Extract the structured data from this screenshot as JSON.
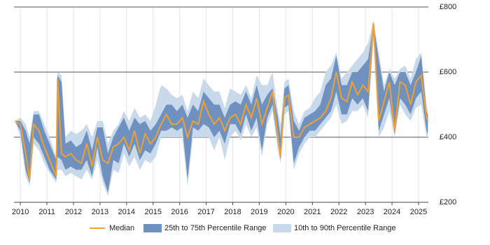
{
  "chart_data": {
    "type": "band-line",
    "x": [
      2009.8,
      2010.0,
      2010.2,
      2010.35,
      2010.5,
      2010.7,
      2010.9,
      2011.1,
      2011.35,
      2011.4,
      2011.55,
      2011.7,
      2011.9,
      2012.1,
      2012.3,
      2012.5,
      2012.7,
      2012.9,
      2013.1,
      2013.3,
      2013.5,
      2013.7,
      2013.9,
      2014.1,
      2014.3,
      2014.5,
      2014.7,
      2014.9,
      2015.1,
      2015.3,
      2015.5,
      2015.7,
      2015.9,
      2016.1,
      2016.3,
      2016.5,
      2016.7,
      2016.9,
      2017.1,
      2017.3,
      2017.5,
      2017.7,
      2017.9,
      2018.1,
      2018.3,
      2018.5,
      2018.7,
      2018.9,
      2019.1,
      2019.3,
      2019.5,
      2019.7,
      2019.8,
      2019.95,
      2020.1,
      2020.3,
      2020.5,
      2020.7,
      2020.9,
      2021.1,
      2021.3,
      2021.5,
      2021.7,
      2021.9,
      2022.1,
      2022.3,
      2022.5,
      2022.7,
      2022.9,
      2023.1,
      2023.3,
      2023.5,
      2023.7,
      2023.9,
      2024.1,
      2024.3,
      2024.5,
      2024.7,
      2024.9,
      2025.1,
      2025.3,
      2025.35
    ],
    "series": [
      {
        "name": "Median",
        "color": "#f0a030",
        "values": [
          450,
          440,
          350,
          270,
          440,
          420,
          370,
          330,
          280,
          580,
          350,
          340,
          350,
          330,
          320,
          380,
          310,
          400,
          330,
          320,
          370,
          380,
          400,
          360,
          420,
          350,
          410,
          380,
          400,
          440,
          470,
          440,
          440,
          460,
          400,
          450,
          440,
          510,
          470,
          440,
          460,
          420,
          460,
          470,
          440,
          500,
          460,
          520,
          440,
          490,
          540,
          400,
          340,
          520,
          530,
          400,
          400,
          430,
          440,
          450,
          460,
          480,
          520,
          600,
          520,
          510,
          570,
          530,
          560,
          540,
          750,
          450,
          510,
          570,
          420,
          570,
          560,
          500,
          570,
          590,
          460,
          450
        ]
      }
    ],
    "bands": [
      {
        "name": "25th to 75th Percentile Range",
        "color": "#6f91c0",
        "lower": [
          450,
          420,
          300,
          260,
          400,
          380,
          340,
          300,
          270,
          340,
          330,
          300,
          310,
          300,
          300,
          330,
          280,
          370,
          280,
          230,
          330,
          320,
          380,
          340,
          380,
          330,
          360,
          350,
          380,
          420,
          420,
          430,
          420,
          430,
          270,
          430,
          420,
          440,
          430,
          400,
          420,
          380,
          440,
          440,
          410,
          470,
          420,
          460,
          360,
          460,
          500,
          380,
          330,
          490,
          500,
          320,
          370,
          400,
          420,
          420,
          440,
          460,
          480,
          540,
          470,
          470,
          520,
          500,
          520,
          480,
          720,
          420,
          470,
          520,
          410,
          520,
          500,
          470,
          520,
          540,
          420,
          410
        ],
        "upper": [
          450,
          450,
          420,
          380,
          470,
          470,
          420,
          380,
          330,
          590,
          570,
          380,
          390,
          370,
          380,
          420,
          360,
          430,
          430,
          350,
          400,
          430,
          460,
          420,
          460,
          440,
          450,
          420,
          440,
          470,
          500,
          500,
          480,
          500,
          460,
          500,
          480,
          540,
          520,
          500,
          500,
          460,
          500,
          510,
          500,
          540,
          500,
          560,
          500,
          530,
          550,
          460,
          400,
          550,
          560,
          450,
          420,
          460,
          470,
          480,
          500,
          560,
          580,
          650,
          560,
          560,
          600,
          600,
          620,
          640,
          750,
          640,
          540,
          600,
          560,
          600,
          600,
          560,
          600,
          650,
          480,
          470
        ]
      },
      {
        "name": "10th to 90th Percentile Range",
        "color": "#c8d9ec",
        "lower": [
          450,
          400,
          280,
          250,
          380,
          360,
          320,
          290,
          260,
          300,
          300,
          280,
          290,
          280,
          270,
          300,
          270,
          330,
          260,
          220,
          300,
          290,
          350,
          310,
          340,
          300,
          330,
          320,
          340,
          400,
          400,
          400,
          400,
          400,
          250,
          400,
          400,
          400,
          400,
          360,
          400,
          330,
          400,
          420,
          390,
          440,
          400,
          430,
          340,
          440,
          480,
          360,
          320,
          470,
          480,
          300,
          350,
          380,
          400,
          400,
          420,
          440,
          460,
          500,
          440,
          450,
          480,
          480,
          500,
          460,
          700,
          400,
          430,
          480,
          400,
          500,
          470,
          450,
          490,
          500,
          400,
          400
        ],
        "upper": [
          450,
          460,
          440,
          400,
          480,
          480,
          440,
          400,
          340,
          600,
          590,
          400,
          420,
          410,
          420,
          440,
          400,
          450,
          450,
          380,
          420,
          440,
          480,
          450,
          490,
          460,
          470,
          450,
          500,
          560,
          550,
          530,
          520,
          530,
          480,
          540,
          520,
          580,
          560,
          540,
          540,
          490,
          550,
          540,
          530,
          560,
          520,
          590,
          560,
          560,
          600,
          480,
          440,
          570,
          580,
          480,
          440,
          480,
          490,
          520,
          540,
          600,
          620,
          660,
          580,
          600,
          620,
          640,
          660,
          690,
          760,
          660,
          560,
          610,
          580,
          610,
          620,
          580,
          640,
          660,
          500,
          480
        ]
      }
    ],
    "xlim": [
      2009.76,
      2025.37
    ],
    "xticks": [
      2010,
      2011,
      2012,
      2013,
      2014,
      2015,
      2016,
      2017,
      2018,
      2019,
      2020,
      2021,
      2022,
      2023,
      2024,
      2025
    ],
    "ylim": [
      200,
      800
    ],
    "yticks": [
      {
        "value": 200,
        "label": "£200"
      },
      {
        "value": 400,
        "label": "£400"
      },
      {
        "value": 600,
        "label": "£600"
      },
      {
        "value": 800,
        "label": "£800"
      }
    ],
    "grid": true
  }
}
